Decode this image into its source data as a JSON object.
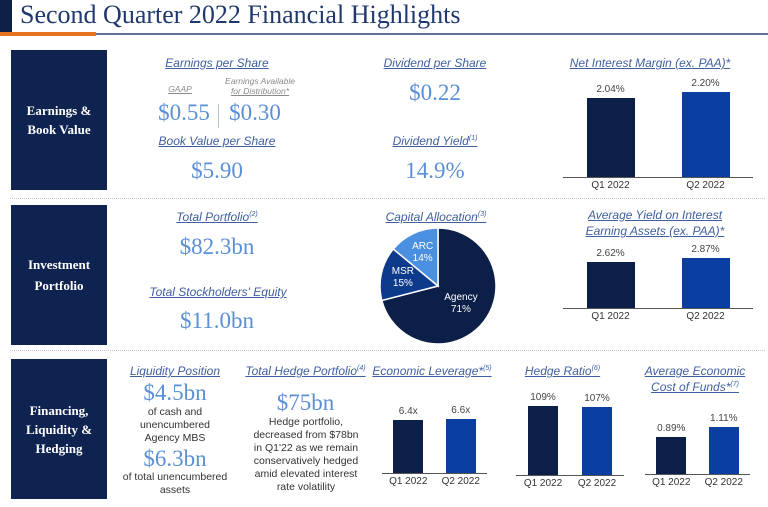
{
  "title": "Second Quarter 2022 Financial Highlights",
  "colors": {
    "navy": "#0f2350",
    "bar_q1": "#0b1f48",
    "bar_q2": "#0a3ea0",
    "accent_orange": "#e8731e",
    "value_blue": "#5b8fd6",
    "header_link": "#3f5fa0",
    "pie_agency": "#0b1f48",
    "pie_msr": "#0e3a8c",
    "pie_arc": "#4a8fe0"
  },
  "sections": [
    {
      "label": "Earnings & Book Value"
    },
    {
      "label": "Investment Portfolio"
    },
    {
      "label": "Financing, Liquidity & Hedging"
    }
  ],
  "earnings": {
    "eps_header": "Earnings per Share",
    "gaap_label": "GAAP",
    "ead_label_line1": "Earnings Available",
    "ead_label_line2": "for Distribution*",
    "gaap_value": "$0.55",
    "ead_value": "$0.30",
    "bvps_header": "Book Value per Share",
    "bvps_value": "$5.90",
    "dps_header": "Dividend per Share",
    "dps_value": "$0.22",
    "yield_header": "Dividend Yield",
    "yield_note": "(1)",
    "yield_value": "14.9%"
  },
  "portfolio": {
    "total_header": "Total Portfolio",
    "total_note": "(2)",
    "total_value": "$82.3bn",
    "equity_header": "Total Stockholders' Equity",
    "equity_value": "$11.0bn",
    "alloc_header": "Capital Allocation",
    "alloc_note": "(3)"
  },
  "financing": {
    "liq_header": "Liquidity Position",
    "liq_value1": "$4.5bn",
    "liq_text1": "of cash and unencumbered Agency MBS",
    "liq_value2": "$6.3bn",
    "liq_text2": "of total unencumbered assets",
    "hedge_header": "Total Hedge Portfolio",
    "hedge_note": "(4)",
    "hedge_value": "$75bn",
    "hedge_text": "Hedge portfolio, decreased from $78bn in Q1'22 as we remain conservatively hedged amid elevated interest rate volatility"
  },
  "chart_data": [
    {
      "id": "nim",
      "type": "bar",
      "title": "Net Interest Margin (ex. PAA)*",
      "title_note": "",
      "categories": [
        "Q1 2022",
        "Q2 2022"
      ],
      "values": [
        2.04,
        2.2
      ],
      "labels": [
        "2.04%",
        "2.20%"
      ],
      "ylim": [
        0,
        2.4
      ]
    },
    {
      "id": "yield",
      "type": "bar",
      "title": "Average Yield on Interest Earning Assets (ex. PAA)*",
      "title_line1": "Average Yield on Interest",
      "title_line2": "Earning Assets (ex. PAA)*",
      "categories": [
        "Q1 2022",
        "Q2 2022"
      ],
      "values": [
        2.62,
        2.87
      ],
      "labels": [
        "2.62%",
        "2.87%"
      ],
      "ylim": [
        0,
        3.3
      ]
    },
    {
      "id": "alloc",
      "type": "pie",
      "title": "Capital Allocation(3)",
      "categories": [
        "Agency",
        "MSR",
        "ARC"
      ],
      "values": [
        71,
        15,
        14
      ],
      "labels": [
        "71%",
        "15%",
        "14%"
      ]
    },
    {
      "id": "leverage",
      "type": "bar",
      "title": "Economic Leverage*",
      "title_note": "(5)",
      "categories": [
        "Q1 2022",
        "Q2 2022"
      ],
      "values": [
        6.4,
        6.6
      ],
      "labels": [
        "6.4x",
        "6.6x"
      ],
      "ylim": [
        0,
        9.0
      ]
    },
    {
      "id": "hedge_ratio",
      "type": "bar",
      "title": "Hedge Ratio",
      "title_note": "(6)",
      "categories": [
        "Q1 2022",
        "Q2 2022"
      ],
      "values": [
        109,
        107
      ],
      "labels": [
        "109%",
        "107%"
      ],
      "ylim": [
        0,
        120
      ]
    },
    {
      "id": "cof",
      "type": "bar",
      "title": "Average Economic Cost of Funds*(7)",
      "title_line1": "Average Economic",
      "title_line2": "Cost of Funds*",
      "title_note": "(7)",
      "categories": [
        "Q1 2022",
        "Q2 2022"
      ],
      "values": [
        0.89,
        1.11
      ],
      "labels": [
        "0.89%",
        "1.11%"
      ],
      "ylim": [
        0,
        1.55
      ]
    }
  ]
}
